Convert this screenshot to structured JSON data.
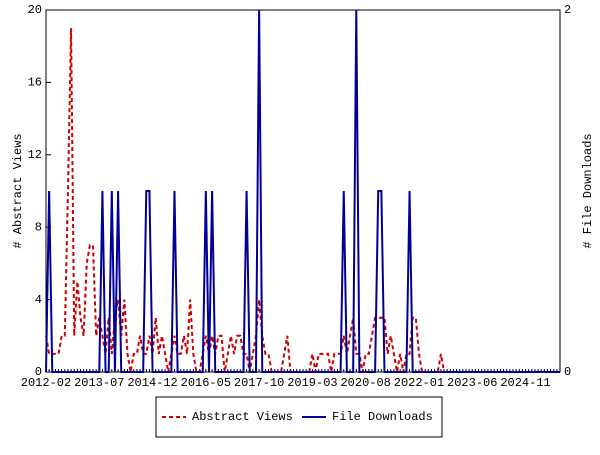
{
  "chart_data": {
    "type": "line",
    "y_label": "# Abstract Views",
    "y2_label": "# File Downloads",
    "categories": [
      "2012-02",
      null,
      null,
      null,
      null,
      null,
      null,
      null,
      null,
      null,
      null,
      null,
      null,
      null,
      null,
      null,
      null,
      "2013-07",
      null,
      null,
      null,
      null,
      null,
      null,
      null,
      null,
      null,
      null,
      null,
      null,
      null,
      null,
      null,
      null,
      "2014-12",
      null,
      null,
      null,
      null,
      null,
      null,
      null,
      null,
      null,
      null,
      null,
      null,
      null,
      null,
      null,
      null,
      "2016-05",
      null,
      null,
      null,
      null,
      null,
      null,
      null,
      null,
      null,
      null,
      null,
      null,
      null,
      null,
      null,
      null,
      "2017-10",
      null,
      null,
      null,
      null,
      null,
      null,
      null,
      null,
      null,
      null,
      null,
      null,
      null,
      null,
      null,
      null,
      "2019-03",
      null,
      null,
      null,
      null,
      null,
      null,
      null,
      null,
      null,
      null,
      null,
      null,
      null,
      null,
      null,
      null,
      "2020-08",
      null,
      null,
      null,
      null,
      null,
      null,
      null,
      null,
      null,
      null,
      null,
      null,
      null,
      null,
      null,
      null,
      "2022-01",
      null,
      null,
      null,
      null,
      null,
      null,
      null,
      null,
      null,
      null,
      null,
      null,
      null,
      null,
      null,
      null,
      "2023-06",
      null,
      null,
      null,
      null,
      null,
      null,
      null,
      null,
      null,
      null,
      null,
      null,
      null,
      null,
      null,
      null,
      "2024-11",
      null,
      null,
      null,
      null,
      null,
      null,
      null,
      null,
      null,
      null,
      null
    ],
    "series": [
      {
        "name": "Abstract Views",
        "color": "#cc0000",
        "dashed": true,
        "values": [
          2,
          1,
          1,
          1,
          1,
          2,
          2,
          10,
          19,
          2,
          5,
          3,
          2,
          6,
          7,
          7,
          2,
          3,
          2,
          1,
          3,
          1,
          3,
          4,
          2,
          4,
          1,
          0,
          1,
          1,
          2,
          1,
          1,
          2,
          1,
          3,
          1,
          2,
          1,
          0,
          1,
          2,
          1,
          1,
          2,
          1,
          4,
          1,
          0,
          0,
          1,
          2,
          1,
          2,
          1,
          2,
          2,
          0,
          1,
          2,
          1,
          2,
          2,
          1,
          1,
          0,
          1,
          2,
          4,
          2,
          1,
          1,
          0,
          0,
          0,
          0,
          1,
          2,
          0,
          0,
          0,
          0,
          0,
          0,
          0,
          1,
          0,
          1,
          1,
          1,
          1,
          0,
          1,
          1,
          1,
          2,
          1,
          2,
          3,
          1,
          1,
          0,
          1,
          1,
          2,
          3,
          3,
          3,
          3,
          1,
          2,
          1,
          0,
          1,
          0,
          1,
          1,
          3,
          3,
          1,
          0,
          0,
          0,
          0,
          0,
          0,
          1,
          0,
          0,
          0,
          0,
          0,
          0,
          0,
          0,
          0,
          0,
          0,
          0,
          0,
          0,
          0,
          0,
          0,
          0,
          0,
          0,
          0,
          0,
          0,
          0,
          0,
          0,
          0,
          0,
          0,
          0,
          0,
          0,
          0,
          0,
          0,
          0,
          0,
          0
        ]
      },
      {
        "name": "File Downloads",
        "color": "#000099",
        "axis": "y2",
        "values": [
          0,
          1,
          0,
          0,
          0,
          0,
          0,
          0,
          0,
          0,
          0,
          0,
          0,
          0,
          0,
          0,
          0,
          0,
          1,
          0,
          0,
          1,
          0,
          1,
          0,
          0,
          0,
          0,
          0,
          0,
          0,
          0,
          1,
          1,
          0,
          0,
          0,
          0,
          0,
          0,
          0,
          1,
          0,
          0,
          0,
          0,
          0,
          0,
          0,
          0,
          0,
          1,
          0,
          1,
          0,
          0,
          0,
          0,
          0,
          0,
          0,
          0,
          0,
          0,
          1,
          0,
          0,
          0,
          2,
          0,
          0,
          0,
          0,
          0,
          0,
          0,
          0,
          0,
          0,
          0,
          0,
          0,
          0,
          0,
          0,
          0,
          0,
          0,
          0,
          0,
          0,
          0,
          0,
          0,
          0,
          1,
          0,
          0,
          0,
          2,
          0,
          0,
          0,
          0,
          0,
          0,
          1,
          1,
          0,
          0,
          0,
          0,
          0,
          0,
          0,
          0,
          1,
          0,
          0,
          0,
          0,
          0,
          0,
          0,
          0,
          0,
          0,
          0,
          0,
          0,
          0,
          0,
          0,
          0,
          0,
          0,
          0,
          0,
          0,
          0,
          0,
          0,
          0,
          0,
          0,
          0,
          0,
          0,
          0,
          0,
          0,
          0,
          0,
          0,
          0,
          0,
          0,
          0,
          0,
          0,
          0,
          0,
          0,
          0,
          0
        ]
      }
    ],
    "ylim": [
      0,
      20
    ],
    "yticks": [
      0,
      4,
      8,
      12,
      16,
      20
    ],
    "y2lim": [
      0,
      2
    ],
    "y2ticks": [
      0,
      2
    ],
    "legend": "bottom"
  }
}
